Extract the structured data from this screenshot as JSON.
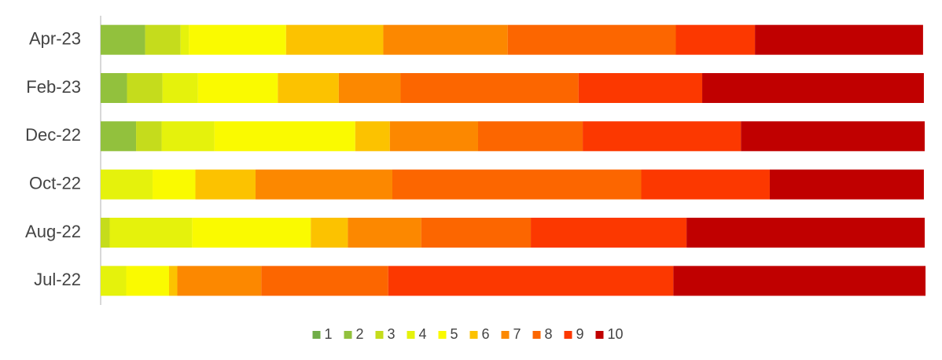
{
  "chart_data": {
    "type": "stacked-barh",
    "categories": [
      "Apr-23",
      "Feb-23",
      "Dec-22",
      "Oct-22",
      "Aug-22",
      "Jul-22"
    ],
    "xlim": [
      0,
      100
    ],
    "series": [
      {
        "name": "1",
        "color": "#70ad47",
        "values": [
          0,
          0,
          0,
          0,
          0,
          0
        ]
      },
      {
        "name": "2",
        "color": "#92c13d",
        "values": [
          5.4,
          3.2,
          4.3,
          0,
          0,
          0
        ]
      },
      {
        "name": "3",
        "color": "#c5dc1c",
        "values": [
          4.3,
          4.3,
          3.1,
          0,
          1.1,
          0
        ]
      },
      {
        "name": "4",
        "color": "#e5f20c",
        "values": [
          1.0,
          4.3,
          6.4,
          6.3,
          10.0,
          3.1
        ]
      },
      {
        "name": "5",
        "color": "#fafa00",
        "values": [
          11.8,
          9.7,
          17.1,
          5.2,
          14.4,
          5.2
        ]
      },
      {
        "name": "6",
        "color": "#fcc200",
        "values": [
          11.8,
          7.4,
          4.2,
          7.3,
          4.5,
          1.0
        ]
      },
      {
        "name": "7",
        "color": "#fc8800",
        "values": [
          15.1,
          7.5,
          10.7,
          16.6,
          8.9,
          10.2
        ]
      },
      {
        "name": "8",
        "color": "#fc6600",
        "values": [
          20.4,
          21.6,
          12.7,
          30.2,
          13.3,
          15.4
        ]
      },
      {
        "name": "9",
        "color": "#fc3800",
        "values": [
          9.6,
          15.0,
          19.2,
          15.6,
          18.9,
          34.6
        ]
      },
      {
        "name": "10",
        "color": "#c00000",
        "values": [
          20.4,
          26.9,
          22.3,
          18.7,
          28.9,
          30.6
        ]
      }
    ]
  }
}
